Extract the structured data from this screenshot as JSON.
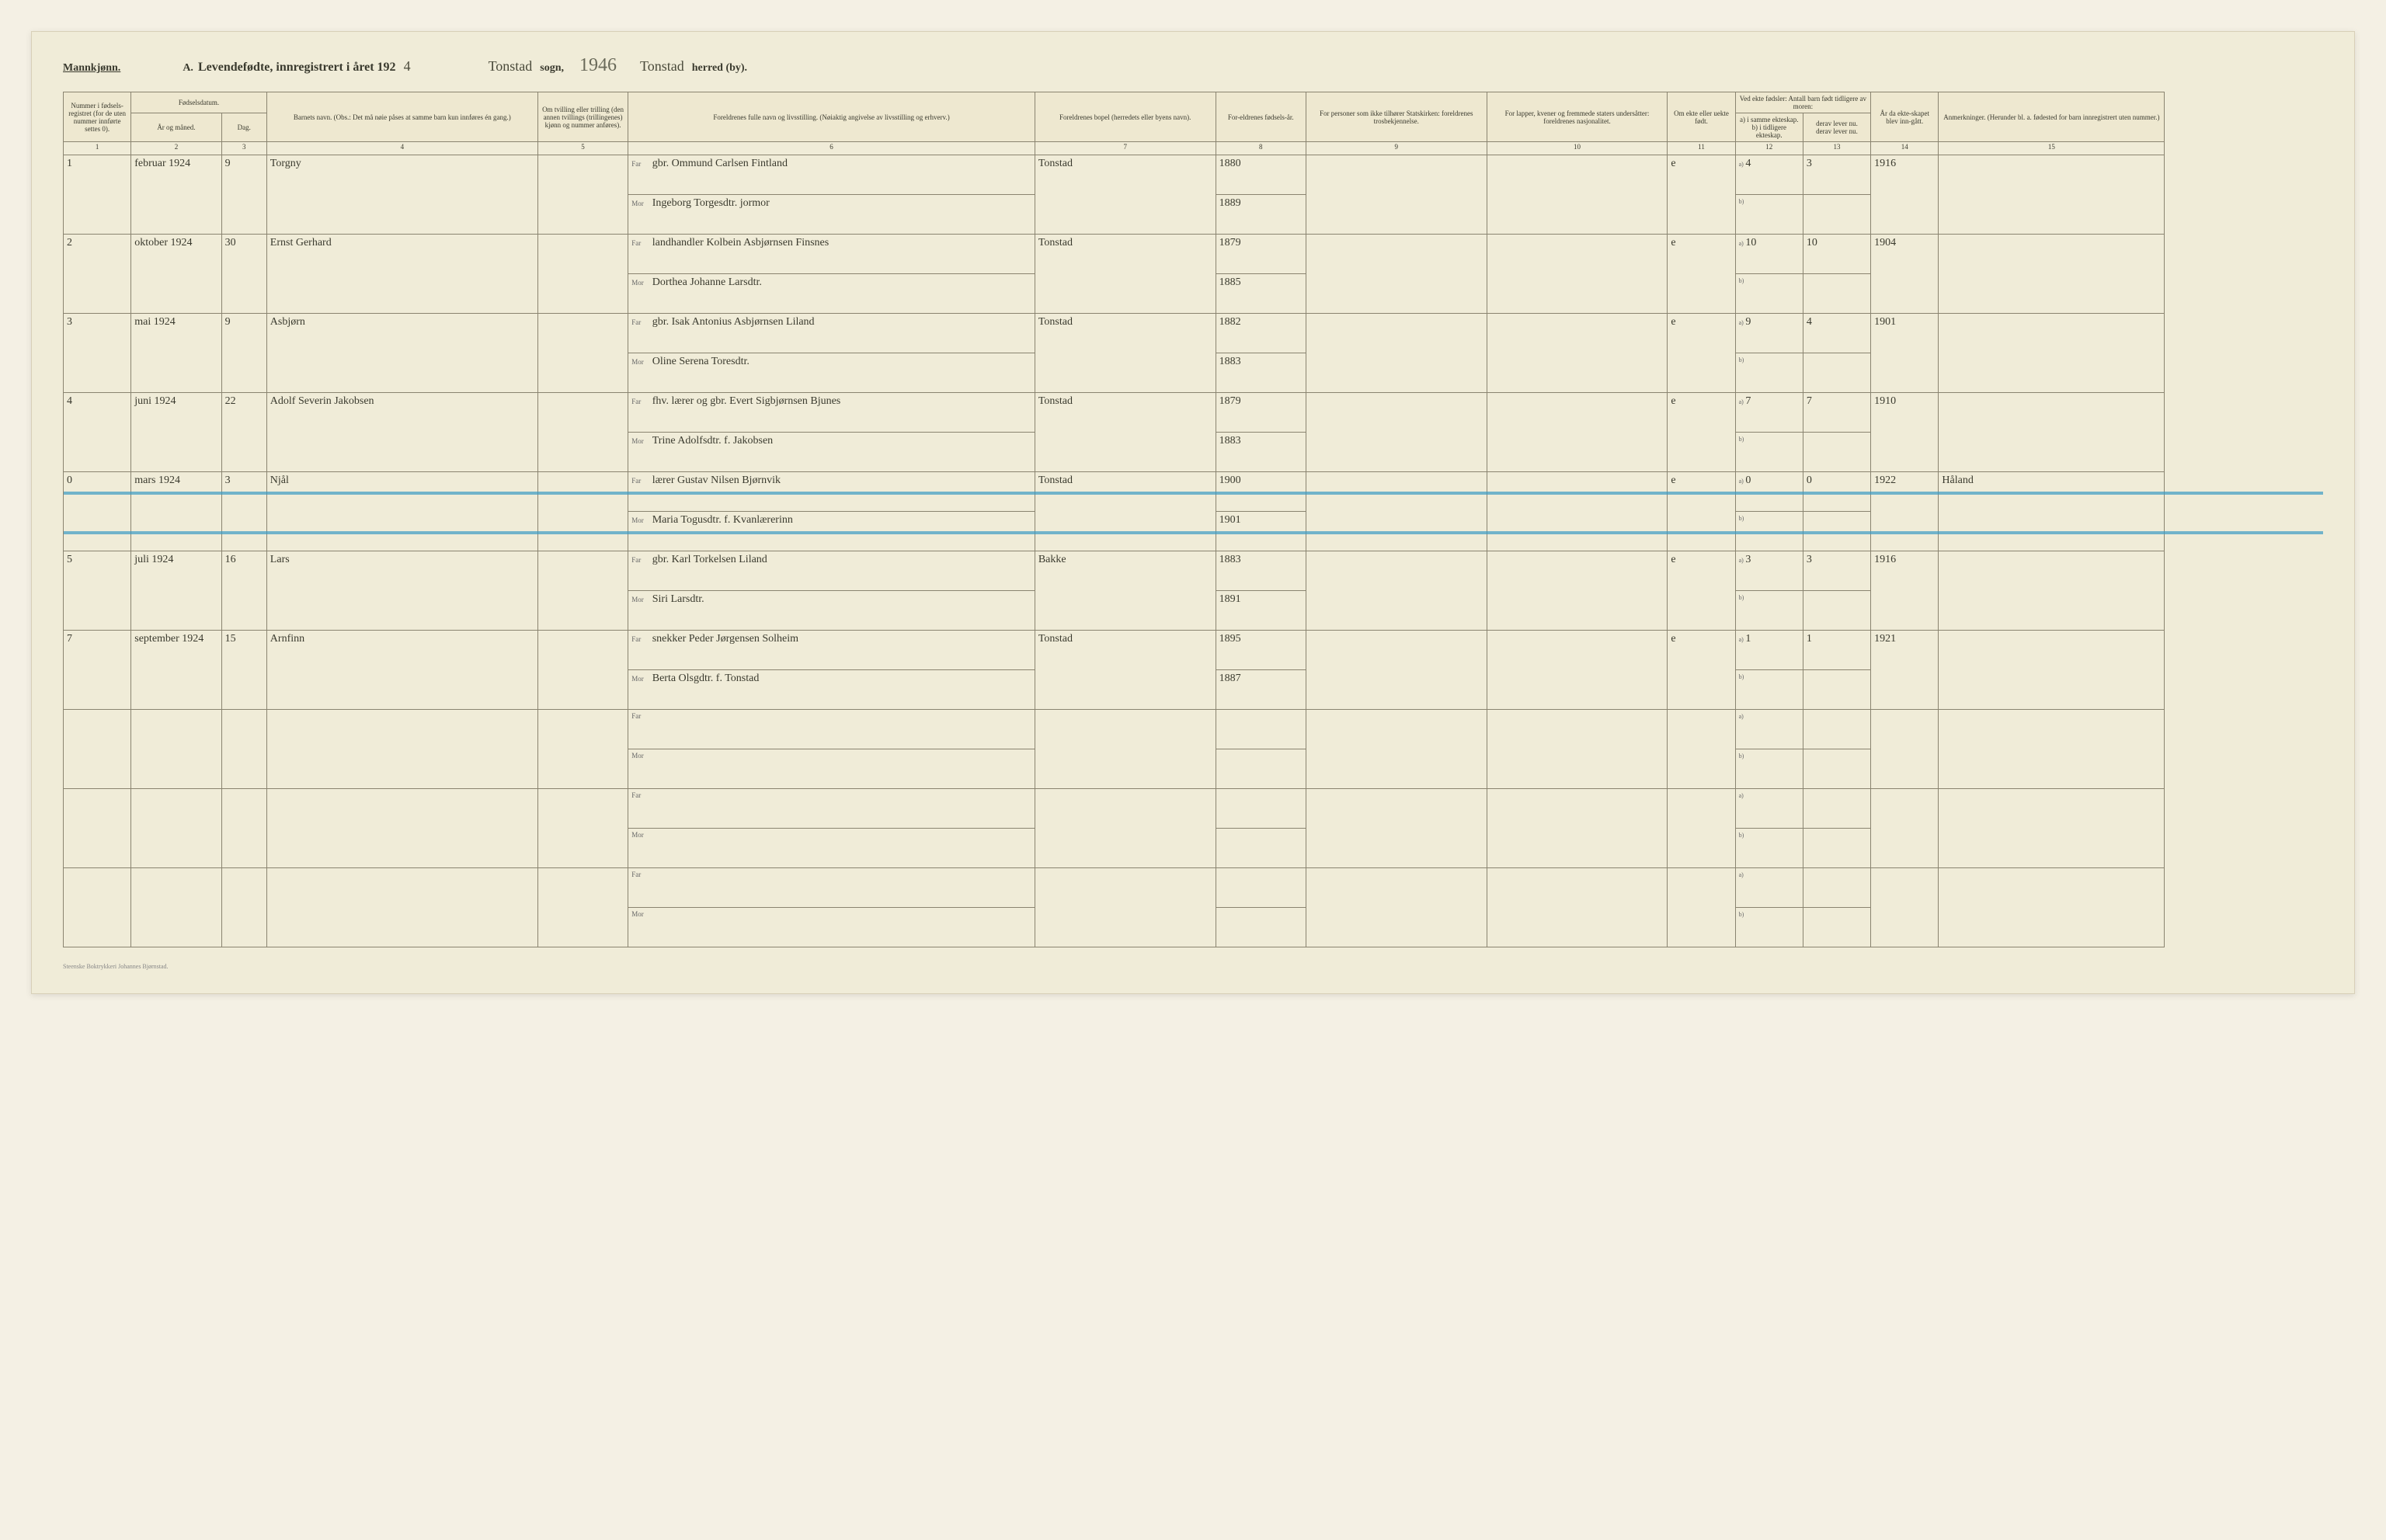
{
  "header": {
    "gender": "Mannkjønn.",
    "title_prefix": "A.",
    "title": "Levendefødte, innregistrert i året 192",
    "year_suffix": "4",
    "parish_word": "sogn,",
    "parish_handwritten": "Tonstad",
    "pencil_year": "1946",
    "district_handwritten": "Tonstad",
    "district_word": "herred (by)."
  },
  "columns": {
    "c1": "Nummer i fødsels-registret (for de uten nummer innførte settes 0).",
    "c2_group": "Fødselsdatum.",
    "c2a": "År og måned.",
    "c2b": "Dag.",
    "c4": "Barnets navn.\n(Obs.: Det må nøie påses at samme barn kun innføres én gang.)",
    "c5": "Om tvilling eller trilling (den annen tvillings (trillingenes) kjønn og nummer anføres).",
    "c6": "Foreldrenes fulle navn og livsstilling.\n(Nøiaktig angivelse av livsstilling og erhverv.)",
    "c7": "Foreldrenes bopel (herredets eller byens navn).",
    "c8": "For-eldrenes fødsels-år.",
    "c9": "For personer som ikke tilhører Statskirken: foreldrenes trosbekjennelse.",
    "c10": "For lapper, kvener og fremmede staters undersåtter: foreldrenes nasjonalitet.",
    "c11": "Om ekte eller uekte født.",
    "c12_group": "Ved ekte fødsler: Antall barn født tidligere av moren:",
    "c12a": "a) i samme ekteskap.",
    "c12b": "b) i tidligere ekteskap.",
    "c13a": "derav lever nu.",
    "c13b": "derav lever nu.",
    "c14": "År da ekte-skapet blev inn-gått.",
    "c15": "Anmerkninger.\n(Herunder bl. a. fødested for barn innregistrert uten nummer.)"
  },
  "colnums": [
    "1",
    "2",
    "3",
    "4",
    "5",
    "6",
    "7",
    "8",
    "9",
    "10",
    "11",
    "12",
    "13",
    "14",
    "15"
  ],
  "far_label": "Far",
  "mor_label": "Mor",
  "ab_a": "a)",
  "ab_b": "b)",
  "rows": [
    {
      "num": "1",
      "month": "februar 1924",
      "day": "9",
      "name": "Torgny",
      "far": "gbr. Ommund Carlsen Fintland",
      "mor": "Ingeborg Torgesdtr. jormor",
      "residence": "Tonstad",
      "far_year": "1880",
      "mor_year": "1889",
      "legit": "e",
      "prev_a": "4",
      "alive_a": "3",
      "marriage": "1916",
      "remarks": ""
    },
    {
      "num": "2",
      "month": "oktober 1924",
      "day": "30",
      "name": "Ernst Gerhard",
      "far": "landhandler Kolbein Asbjørnsen Finsnes",
      "mor": "Dorthea Johanne Larsdtr.",
      "residence": "Tonstad",
      "far_year": "1879",
      "mor_year": "1885",
      "legit": "e",
      "prev_a": "10",
      "alive_a": "10",
      "marriage": "1904",
      "remarks": ""
    },
    {
      "num": "3",
      "month": "mai 1924",
      "day": "9",
      "name": "Asbjørn",
      "far": "gbr. Isak Antonius Asbjørnsen Liland",
      "mor": "Oline Serena Toresdtr.",
      "residence": "Tonstad",
      "far_year": "1882",
      "mor_year": "1883",
      "legit": "e",
      "prev_a": "9",
      "alive_a": "4",
      "marriage": "1901",
      "remarks": ""
    },
    {
      "num": "4",
      "month": "juni 1924",
      "day": "22",
      "name": "Adolf Severin Jakobsen",
      "far": "fhv. lærer og gbr. Evert Sigbjørnsen Bjunes",
      "mor": "Trine Adolfsdtr. f. Jakobsen",
      "residence": "Tonstad",
      "far_year": "1879",
      "mor_year": "1883",
      "legit": "e",
      "prev_a": "7",
      "alive_a": "7",
      "marriage": "1910",
      "remarks": ""
    },
    {
      "num": "0",
      "month": "mars 1924",
      "day": "3",
      "name": "Njål",
      "far": "lærer Gustav Nilsen Bjørnvik",
      "mor": "Maria Togusdtr. f. Kvanlærerinn",
      "residence": "Tonstad",
      "far_year": "1900",
      "mor_year": "1901",
      "legit": "e",
      "prev_a": "0",
      "alive_a": "0",
      "marriage": "1922",
      "remarks": "Håland",
      "struck": true
    },
    {
      "num": "5",
      "month": "juli 1924",
      "day": "16",
      "name": "Lars",
      "far": "gbr. Karl Torkelsen Liland",
      "mor": "Siri Larsdtr.",
      "residence": "Bakke",
      "far_year": "1883",
      "mor_year": "1891",
      "legit": "e",
      "prev_a": "3",
      "alive_a": "3",
      "marriage": "1916",
      "remarks": ""
    },
    {
      "num": "7",
      "month": "september 1924",
      "day": "15",
      "name": "Arnfinn",
      "far": "snekker Peder Jørgensen Solheim",
      "mor": "Berta Olsgdtr. f. Tonstad",
      "residence": "Tonstad",
      "far_year": "1895",
      "mor_year": "1887",
      "legit": "e",
      "prev_a": "1",
      "alive_a": "1",
      "marriage": "1921",
      "remarks": ""
    },
    {
      "empty": true
    },
    {
      "empty": true
    },
    {
      "empty": true
    }
  ],
  "footer": "Steenske Boktrykkeri Johannes Bjørnstad.",
  "colors": {
    "paper": "#f0ecd8",
    "ink": "#3a3a2e",
    "rule": "#8a8470",
    "blue_line": "#3a9bc4"
  }
}
